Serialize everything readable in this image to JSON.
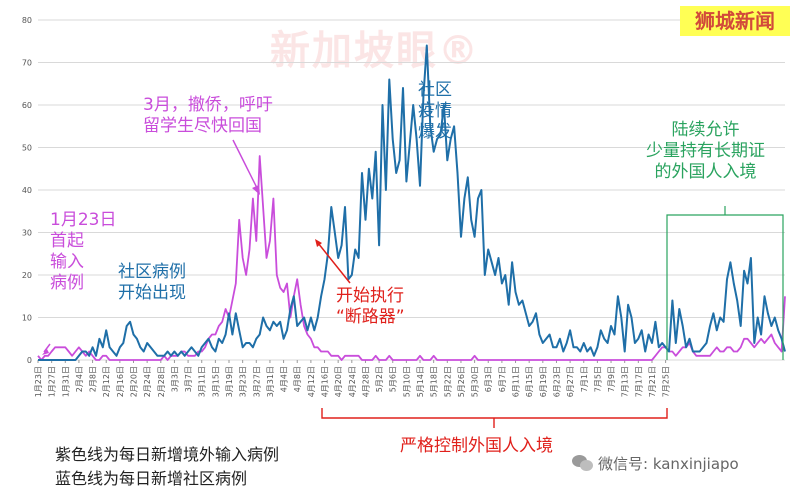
{
  "brand": "狮城新闻",
  "watermark": "新加坡眼®",
  "annotations": {
    "jan23": "1月23日\n首起\n输入\n病例",
    "community_start": "社区病例\n开始出现",
    "march": "3月，撤侨，呼吁\n留学生尽快回国",
    "breaker": "开始执行\n“断路器”",
    "outbreak": "社区\n疫情\n爆发",
    "allow": "陆续允许\n少量持有长期证\n的外国人入境",
    "strict": "严格控制外国人入境"
  },
  "notes": {
    "purple": "紫色线为每日新增境外输入病例",
    "blue": "蓝色线为每日新增社区病例"
  },
  "wechat": "微信号: kanxinjiapo",
  "colors": {
    "imported": "#c94ddb",
    "community": "#1f6fa8",
    "grid": "#d9d9d9",
    "axis_text": "#555555",
    "red": "#e0201b",
    "green": "#2aa35f"
  },
  "chart_data": {
    "type": "line",
    "title": "",
    "xlabel": "",
    "ylabel": "",
    "ylim": [
      0,
      80
    ],
    "yticks": [
      0,
      10,
      20,
      30,
      40,
      50,
      60,
      70,
      80
    ],
    "grid": true,
    "x_start": "2020-01-23",
    "x_ticks": [
      "1月23日",
      "1月27日",
      "1月31日",
      "2月4日",
      "2月8日",
      "2月12日",
      "2月16日",
      "2月20日",
      "2月24日",
      "2月28日",
      "3月3日",
      "3月7日",
      "3月11日",
      "3月15日",
      "3月19日",
      "3月23日",
      "3月27日",
      "3月31日",
      "4月4日",
      "4月8日",
      "4月12日",
      "4月16日",
      "4月20日",
      "4月24日",
      "4月28日",
      "5月2日",
      "5月6日",
      "5月10日",
      "5月14日",
      "5月18日",
      "5月22日",
      "5月26日",
      "5月30日",
      "6月3日",
      "6月7日",
      "6月11日",
      "6月15日",
      "6月19日",
      "6月23日",
      "6月27日",
      "7月1日",
      "7月5日",
      "7月9日",
      "7月13日",
      "7月17日",
      "7月21日",
      "7月25日"
    ],
    "series": [
      {
        "name": "每日新增境外输入病例",
        "color": "#c94ddb",
        "values": [
          1,
          0,
          1,
          1,
          2,
          3,
          3,
          3,
          3,
          2,
          1,
          2,
          3,
          2,
          1,
          2,
          1,
          0,
          0,
          1,
          1,
          0,
          0,
          0,
          0,
          0,
          0,
          0,
          0,
          0,
          0,
          0,
          0,
          0,
          0,
          0,
          0,
          1,
          0,
          1,
          1,
          1,
          2,
          2,
          1,
          1,
          1,
          2,
          2,
          3,
          5,
          6,
          6,
          8,
          9,
          12,
          10,
          14,
          18,
          33,
          24,
          20,
          26,
          38,
          28,
          48,
          36,
          24,
          28,
          38,
          20,
          17,
          16,
          18,
          10,
          15,
          19,
          13,
          8,
          6,
          5,
          3,
          3,
          2,
          2,
          2,
          1,
          1,
          1,
          0,
          1,
          1,
          1,
          1,
          1,
          0,
          0,
          0,
          0,
          1,
          0,
          0,
          0,
          1,
          0,
          0,
          0,
          0,
          0,
          0,
          0,
          0,
          1,
          0,
          0,
          0,
          1,
          0,
          0,
          0,
          0,
          0,
          0,
          0,
          0,
          0,
          0,
          0,
          1,
          0,
          0,
          0,
          0,
          0,
          0,
          0,
          0,
          0,
          0,
          0,
          0,
          0,
          0,
          0,
          0,
          0,
          0,
          0,
          0,
          0,
          0,
          0,
          0,
          0,
          0,
          0,
          0,
          0,
          0,
          0,
          0,
          0,
          0,
          0,
          0,
          0,
          0,
          0,
          0,
          0,
          0,
          0,
          0,
          0,
          0,
          0,
          0,
          0,
          0,
          0,
          0,
          1,
          2,
          3,
          3,
          2,
          2,
          1,
          2,
          3,
          3,
          4,
          2,
          1,
          1,
          1,
          1,
          1,
          2,
          3,
          2,
          2,
          3,
          3,
          2,
          2,
          3,
          5,
          5,
          4,
          3,
          4,
          5,
          4,
          5,
          6,
          4,
          3,
          2,
          15
        ]
      },
      {
        "name": "每日新增社区病例",
        "color": "#1f6fa8",
        "values": [
          0,
          0,
          0,
          0,
          0,
          0,
          0,
          0,
          0,
          0,
          0,
          0,
          1,
          2,
          2,
          1,
          3,
          1,
          5,
          3,
          7,
          3,
          2,
          1,
          3,
          4,
          8,
          9,
          6,
          5,
          3,
          2,
          4,
          3,
          2,
          1,
          1,
          1,
          2,
          1,
          2,
          1,
          2,
          1,
          2,
          3,
          2,
          1,
          3,
          4,
          5,
          3,
          2,
          5,
          4,
          6,
          11,
          6,
          11,
          7,
          3,
          4,
          4,
          3,
          5,
          6,
          10,
          8,
          7,
          9,
          8,
          9,
          5,
          7,
          12,
          15,
          8,
          9,
          10,
          7,
          10,
          7,
          10,
          15,
          19,
          25,
          36,
          30,
          24,
          27,
          36,
          19,
          20,
          26,
          24,
          44,
          33,
          45,
          38,
          49,
          27,
          60,
          40,
          66,
          52,
          44,
          47,
          64,
          42,
          51,
          60,
          52,
          41,
          62,
          74,
          55,
          49,
          52,
          53,
          60,
          47,
          52,
          55,
          44,
          29,
          38,
          43,
          33,
          29,
          38,
          40,
          20,
          26,
          23,
          20,
          24,
          18,
          20,
          13,
          23,
          16,
          13,
          14,
          11,
          8,
          9,
          11,
          6,
          4,
          5,
          6,
          3,
          3,
          5,
          2,
          4,
          7,
          3,
          3,
          2,
          4,
          2,
          3,
          1,
          3,
          7,
          5,
          4,
          8,
          6,
          15,
          10,
          2,
          13,
          10,
          4,
          5,
          7,
          2,
          6,
          4,
          9,
          3,
          4,
          3,
          2,
          14,
          4,
          12,
          8,
          3,
          5,
          2,
          2,
          2,
          3,
          4,
          8,
          11,
          7,
          10,
          9,
          19,
          23,
          18,
          14,
          8,
          21,
          18,
          24,
          4,
          10,
          6,
          15,
          11,
          8,
          10,
          7,
          5,
          2
        ]
      }
    ]
  }
}
